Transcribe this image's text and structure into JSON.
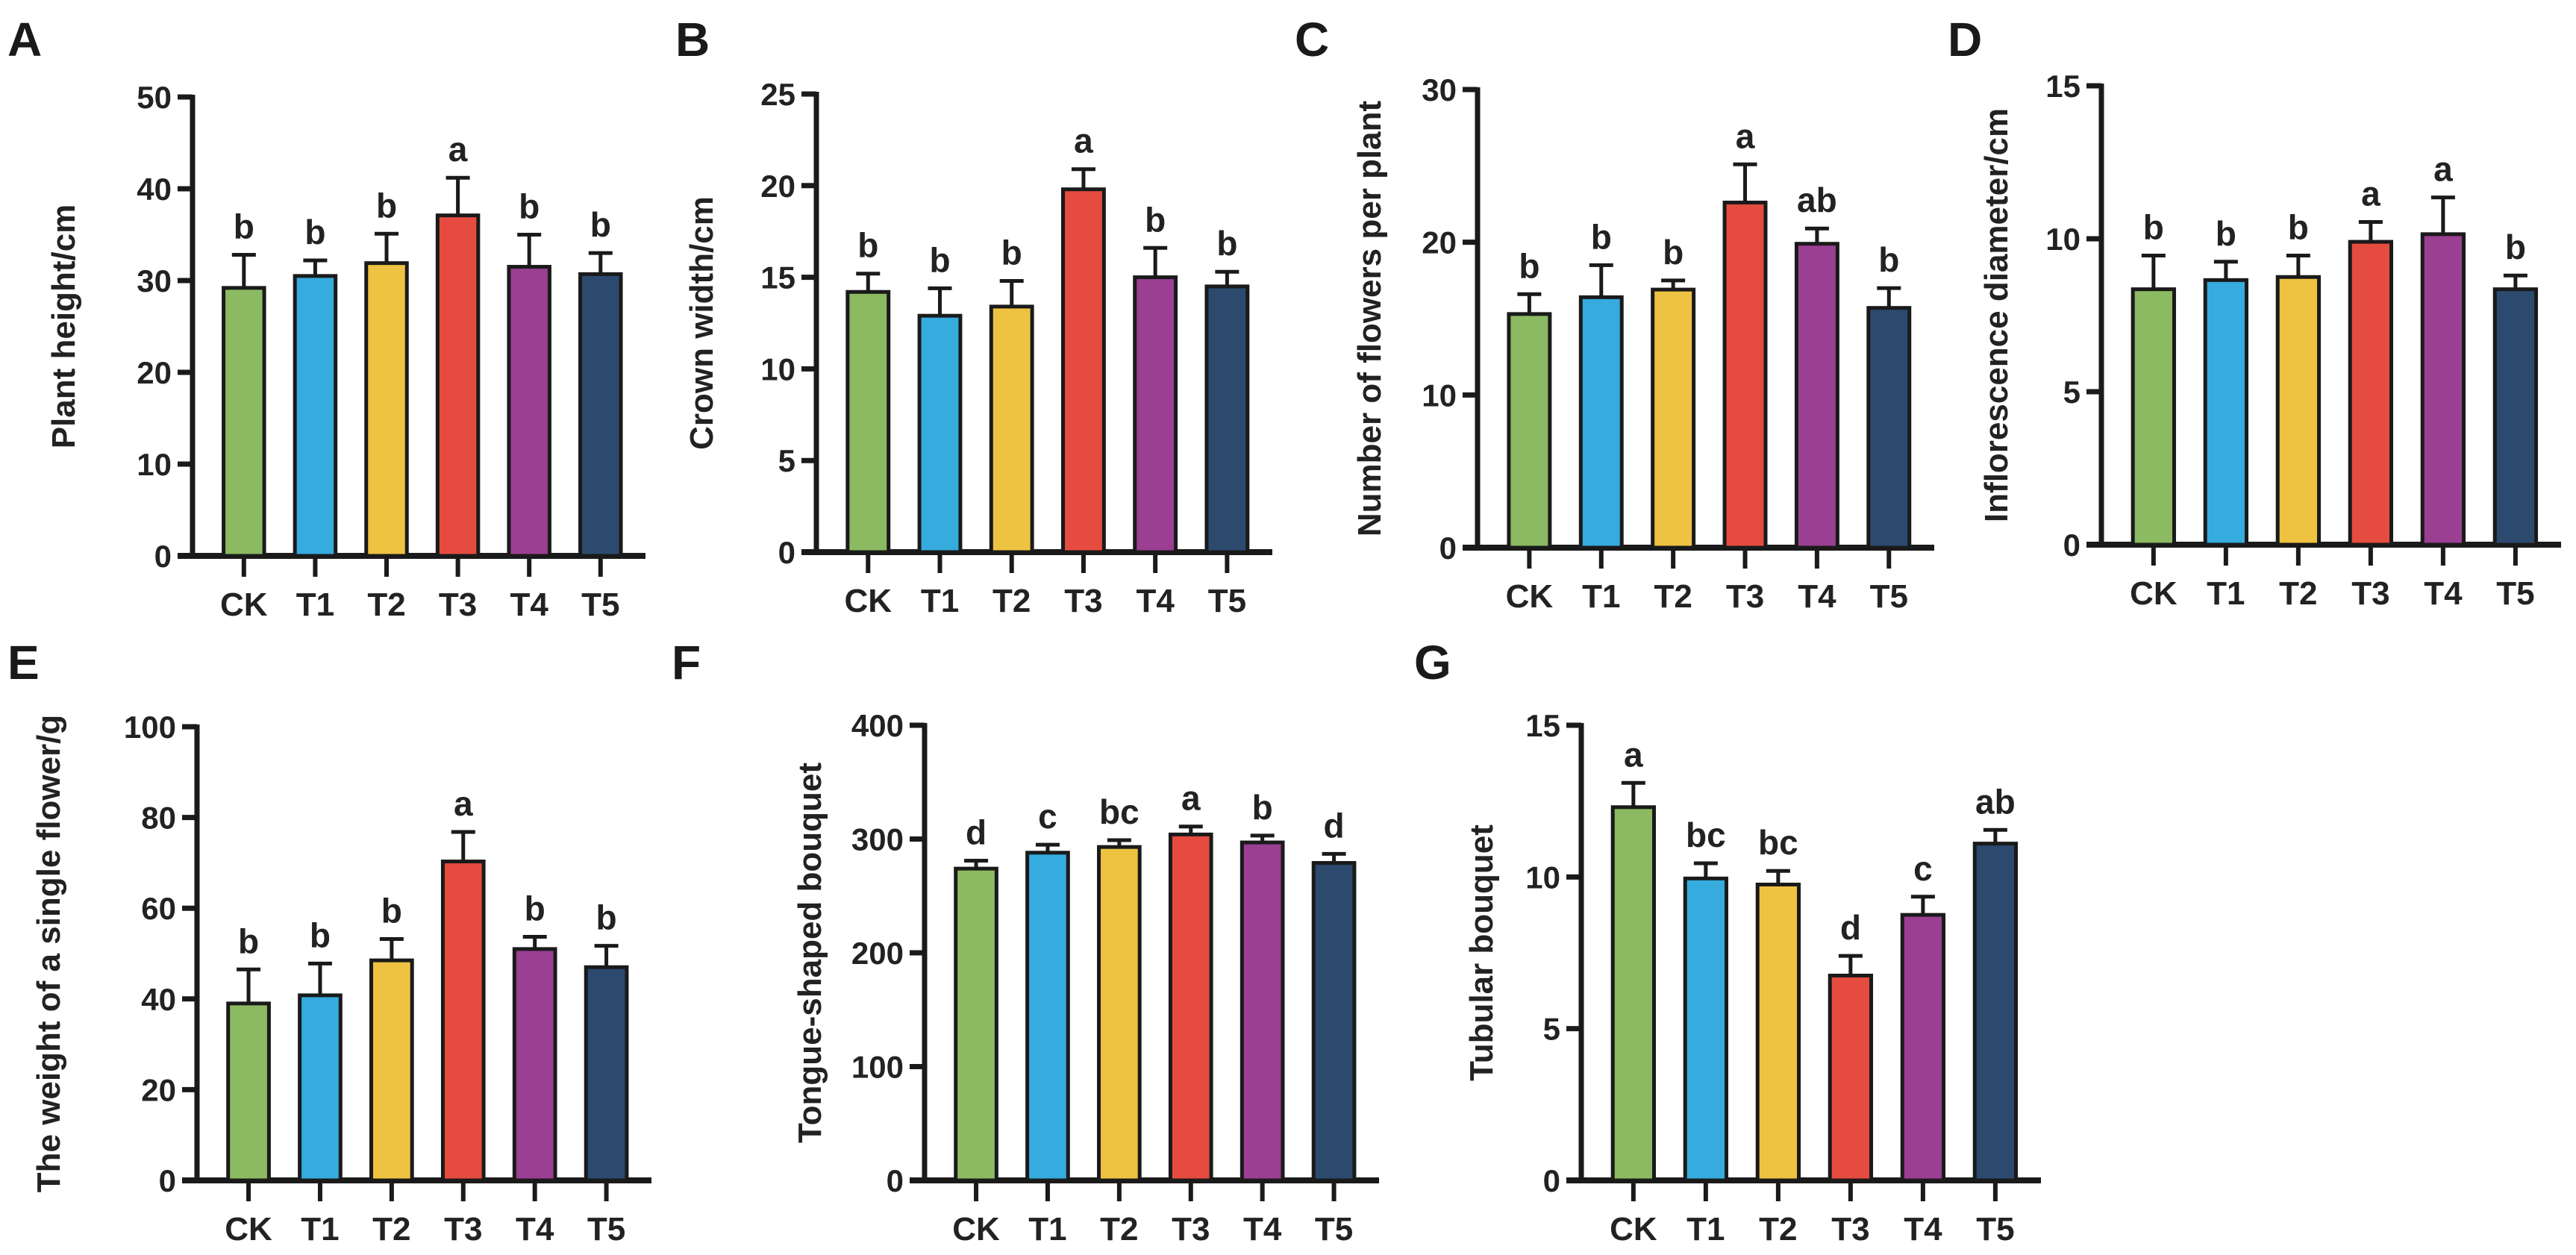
{
  "colors": [
    "#8BBA62",
    "#35ABDE",
    "#EEC342",
    "#E54C3F",
    "#9B3F93",
    "#2C4A6E"
  ],
  "chart_data": [
    {
      "panel": "A",
      "type": "bar",
      "title": "",
      "xlabel": "",
      "ylabel": "Plant height/cm",
      "categories": [
        "CK",
        "T1",
        "T2",
        "T3",
        "T4",
        "T5"
      ],
      "ylim": [
        0,
        50
      ],
      "yticks": [
        "0",
        "10",
        "20",
        "30",
        "40",
        "50"
      ],
      "values": [
        29.2,
        30.5,
        31.9,
        37.1,
        31.5,
        30.7
      ],
      "errors": [
        3.6,
        1.7,
        3.2,
        4.1,
        3.5,
        2.3
      ],
      "letters": [
        "b",
        "b",
        "b",
        "a",
        "b",
        "b"
      ]
    },
    {
      "panel": "B",
      "type": "bar",
      "title": "",
      "xlabel": "",
      "ylabel": "Crown width/cm",
      "categories": [
        "CK",
        "T1",
        "T2",
        "T3",
        "T4",
        "T5"
      ],
      "ylim": [
        0,
        25
      ],
      "yticks": [
        "0",
        "5",
        "10",
        "15",
        "20",
        "25"
      ],
      "values": [
        14.2,
        12.9,
        13.4,
        19.8,
        15.0,
        14.5
      ],
      "errors": [
        1.0,
        1.5,
        1.4,
        1.1,
        1.6,
        0.8
      ],
      "letters": [
        "b",
        "b",
        "b",
        "a",
        "b",
        "b"
      ]
    },
    {
      "panel": "C",
      "type": "bar",
      "title": "",
      "xlabel": "",
      "ylabel": "Number of flowers per plant",
      "categories": [
        "CK",
        "T1",
        "T2",
        "T3",
        "T4",
        "T5"
      ],
      "ylim": [
        0,
        30
      ],
      "yticks": [
        "0",
        "10",
        "20",
        "30"
      ],
      "values": [
        15.3,
        16.4,
        16.9,
        22.6,
        19.9,
        15.7
      ],
      "errors": [
        1.3,
        2.1,
        0.6,
        2.5,
        1.0,
        1.3
      ],
      "letters": [
        "b",
        "b",
        "b",
        "a",
        "ab",
        "b"
      ]
    },
    {
      "panel": "D",
      "type": "bar",
      "title": "",
      "xlabel": "",
      "ylabel": "Inflorescence diameter/cm",
      "categories": [
        "CK",
        "T1",
        "T2",
        "T3",
        "T4",
        "T5"
      ],
      "ylim": [
        0,
        15
      ],
      "yticks": [
        "0",
        "5",
        "10",
        "15"
      ],
      "values": [
        8.35,
        8.65,
        8.75,
        9.9,
        10.15,
        8.35
      ],
      "errors": [
        1.1,
        0.6,
        0.7,
        0.65,
        1.2,
        0.45
      ],
      "letters": [
        "b",
        "b",
        "b",
        "a",
        "a",
        "b"
      ]
    },
    {
      "panel": "E",
      "type": "bar",
      "title": "",
      "xlabel": "",
      "ylabel": "The weight of a single flower/g",
      "categories": [
        "CK",
        "T1",
        "T2",
        "T3",
        "T4",
        "T5"
      ],
      "ylim": [
        0,
        100
      ],
      "yticks": [
        "0",
        "20",
        "40",
        "60",
        "80",
        "100"
      ],
      "values": [
        39.0,
        40.8,
        48.5,
        70.3,
        51.0,
        47.0
      ],
      "errors": [
        7.5,
        7.0,
        4.7,
        6.5,
        2.7,
        4.7
      ],
      "letters": [
        "b",
        "b",
        "b",
        "a",
        "b",
        "b"
      ]
    },
    {
      "panel": "F",
      "type": "bar",
      "title": "",
      "xlabel": "",
      "ylabel": "Tongue-shaped bouquet",
      "categories": [
        "CK",
        "T1",
        "T2",
        "T3",
        "T4",
        "T5"
      ],
      "ylim": [
        0,
        400
      ],
      "yticks": [
        "0",
        "100",
        "200",
        "300",
        "400"
      ],
      "values": [
        274,
        288,
        293,
        304,
        297,
        279
      ],
      "errors": [
        7,
        7,
        6,
        7,
        6,
        8
      ],
      "letters": [
        "d",
        "c",
        "bc",
        "a",
        "b",
        "d"
      ]
    },
    {
      "panel": "G",
      "type": "bar",
      "title": "",
      "xlabel": "",
      "ylabel": "Tubular bouquet",
      "categories": [
        "CK",
        "T1",
        "T2",
        "T3",
        "T4",
        "T5"
      ],
      "ylim": [
        0,
        15
      ],
      "yticks": [
        "0",
        "5",
        "10",
        "15"
      ],
      "values": [
        12.3,
        9.95,
        9.75,
        6.75,
        8.75,
        11.1
      ],
      "errors": [
        0.8,
        0.5,
        0.45,
        0.65,
        0.6,
        0.45
      ],
      "letters": [
        "a",
        "bc",
        "bc",
        "d",
        "c",
        "ab"
      ]
    }
  ]
}
